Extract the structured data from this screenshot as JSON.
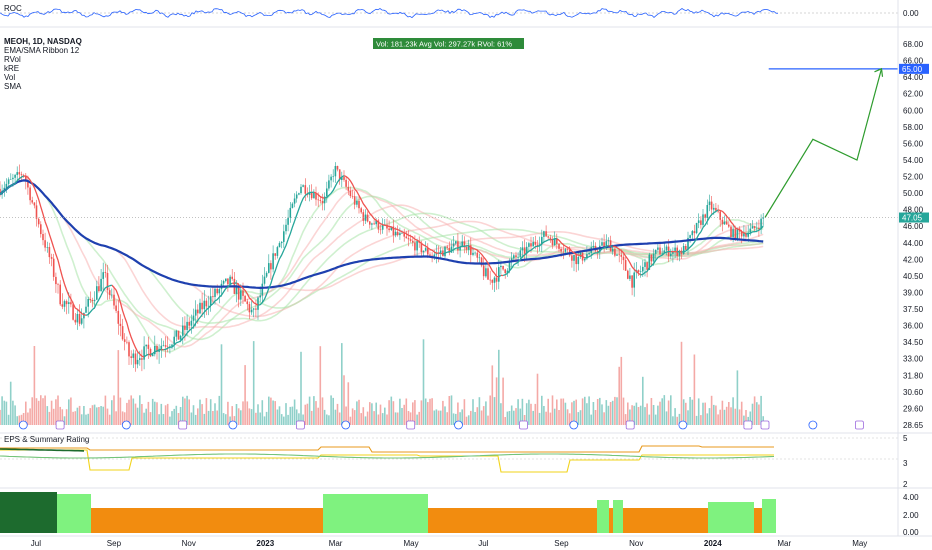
{
  "chart_data": {
    "type": "line",
    "symbol_line": "MEOH, 1D, NASDAQ",
    "indicators": [
      "EMA/SMA Ribbon 12",
      "RVol",
      "kRE",
      "Vol",
      "SMA"
    ],
    "roc_label": "ROC",
    "roc_value_label": "0.00",
    "vol_box": "Vol: 181.23k   Avg Vol: 297.27k   RVol: 61%",
    "eps_label": "EPS & Summary Rating",
    "price_axis": [
      "68.00",
      "66.00",
      "64.00",
      "62.00",
      "60.00",
      "58.00",
      "56.00",
      "54.00",
      "52.00",
      "50.00",
      "48.00",
      "46.00",
      "44.00",
      "42.00",
      "40.50",
      "39.00",
      "37.50",
      "36.00",
      "34.50",
      "33.00",
      "31.80",
      "30.60",
      "29.60",
      "28.65"
    ],
    "price_axis_values": [
      68,
      66,
      64,
      62,
      60,
      58,
      56,
      54,
      52,
      50,
      48,
      46,
      44,
      42,
      40.5,
      39,
      37.5,
      36,
      34.5,
      33,
      31.8,
      30.6,
      29.6,
      28.65
    ],
    "current_price_label": "47.05",
    "current_price": 47.05,
    "target_label": "65.00",
    "target_price": 65.0,
    "eps_axis": [
      "5",
      "3",
      "2"
    ],
    "rating_axis": [
      "4.00",
      "2.00",
      "0.00"
    ],
    "x_labels": [
      "Jul",
      "Sep",
      "Nov",
      "2023",
      "Mar",
      "May",
      "Jul",
      "Sep",
      "Nov",
      "2024",
      "Mar",
      "May"
    ],
    "ylim": [
      28.65,
      68.0
    ],
    "series": [
      {
        "name": "",
        "values": [
          {
            "date": "2022-06",
            "close": 50.5
          },
          {
            "date": "2022-06-20",
            "close": 52.5
          },
          {
            "date": "2022-07-05",
            "close": 45
          },
          {
            "date": "2022-07-20",
            "close": 38.5
          },
          {
            "date": "2022-08-05",
            "close": 36.5
          },
          {
            "date": "2022-08-25",
            "close": 40.5
          },
          {
            "date": "2022-09-15",
            "close": 33
          },
          {
            "date": "2022-10-05",
            "close": 34
          },
          {
            "date": "2022-10-25",
            "close": 35
          },
          {
            "date": "2022-11-15",
            "close": 38
          },
          {
            "date": "2022-12-05",
            "close": 40
          },
          {
            "date": "2022-12-25",
            "close": 37
          },
          {
            "date": "2023-01-15",
            "close": 44
          },
          {
            "date": "2023-02-01",
            "close": 51
          },
          {
            "date": "2023-02-20",
            "close": 49
          },
          {
            "date": "2023-03-01",
            "close": 53
          },
          {
            "date": "2023-03-25",
            "close": 47
          },
          {
            "date": "2023-04-20",
            "close": 45
          },
          {
            "date": "2023-05-20",
            "close": 42.5
          },
          {
            "date": "2023-06-15",
            "close": 44
          },
          {
            "date": "2023-07-05",
            "close": 40
          },
          {
            "date": "2023-07-25",
            "close": 42
          },
          {
            "date": "2023-08-20",
            "close": 45
          },
          {
            "date": "2023-09-15",
            "close": 42
          },
          {
            "date": "2023-10-10",
            "close": 44
          },
          {
            "date": "2023-10-30",
            "close": 40
          },
          {
            "date": "2023-11-20",
            "close": 43
          },
          {
            "date": "2023-12-10",
            "close": 43
          },
          {
            "date": "2024-01-01",
            "close": 48.5
          },
          {
            "date": "2024-01-20",
            "close": 45
          },
          {
            "date": "2024-02-05",
            "close": 45.5
          },
          {
            "date": "2024-02-15",
            "close": 47.05
          }
        ]
      }
    ],
    "projection": [
      {
        "date": "2024-02-15",
        "value": 47.05
      },
      {
        "date": "2024-03-25",
        "value": 56.5
      },
      {
        "date": "2024-04-30",
        "value": 54
      },
      {
        "date": "2024-05-20",
        "value": 65
      }
    ],
    "x_type": "date",
    "grid": false
  },
  "colors": {
    "up": "#26a69a",
    "down": "#ef5350",
    "ma200": "#1e40af",
    "ribbon_red": "#f7b3b3",
    "ribbon_green": "#a7e3a7",
    "projection": "#2e9c2e",
    "target_line": "#2962ff",
    "roc": "#2962ff",
    "eps_orange": "#e89a1c",
    "eps_yellow": "#f2d31a",
    "eps_green": "#74c47a",
    "rating_dark_green": "#1d6b2e",
    "rating_light_green": "#7ff27f",
    "rating_orange": "#f28c0f"
  }
}
